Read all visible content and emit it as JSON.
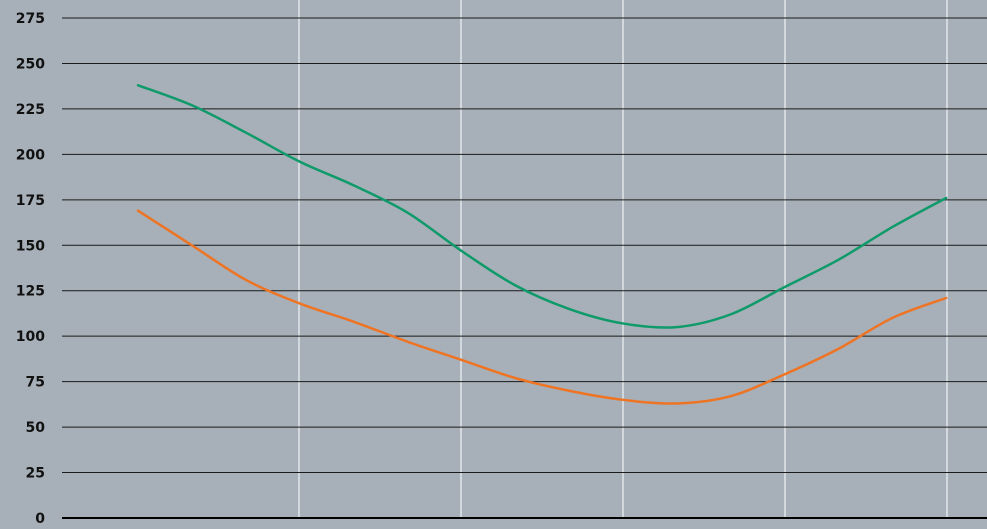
{
  "chart_data": {
    "type": "line",
    "title": "",
    "xlabel": "",
    "ylabel": "",
    "ylim": [
      0,
      275
    ],
    "y_ticks": [
      "0",
      "25",
      "50",
      "75",
      "100",
      "125",
      "150",
      "175",
      "200",
      "225",
      "250",
      "275"
    ],
    "x_gridlines": 5,
    "grid": true,
    "series": [
      {
        "color": "#0f9a6a",
        "points": [
          [
            0.0,
            238
          ],
          [
            0.25,
            227
          ],
          [
            0.5,
            212
          ],
          [
            0.75,
            196
          ],
          [
            1.0,
            183
          ],
          [
            1.25,
            168
          ],
          [
            1.5,
            147
          ],
          [
            1.75,
            128
          ],
          [
            2.0,
            115
          ],
          [
            2.25,
            107
          ],
          [
            2.5,
            105
          ],
          [
            2.75,
            112
          ],
          [
            3.0,
            127
          ],
          [
            3.25,
            142
          ],
          [
            3.5,
            160
          ],
          [
            3.75,
            176
          ]
        ]
      },
      {
        "color": "#ee7424",
        "points": [
          [
            0.0,
            169
          ],
          [
            0.25,
            150
          ],
          [
            0.5,
            131
          ],
          [
            0.75,
            118
          ],
          [
            1.0,
            108
          ],
          [
            1.25,
            97
          ],
          [
            1.5,
            87
          ],
          [
            1.75,
            77
          ],
          [
            2.0,
            70
          ],
          [
            2.25,
            65
          ],
          [
            2.5,
            63
          ],
          [
            2.75,
            67
          ],
          [
            3.0,
            79
          ],
          [
            3.25,
            93
          ],
          [
            3.5,
            110
          ],
          [
            3.75,
            121
          ]
        ]
      }
    ]
  }
}
